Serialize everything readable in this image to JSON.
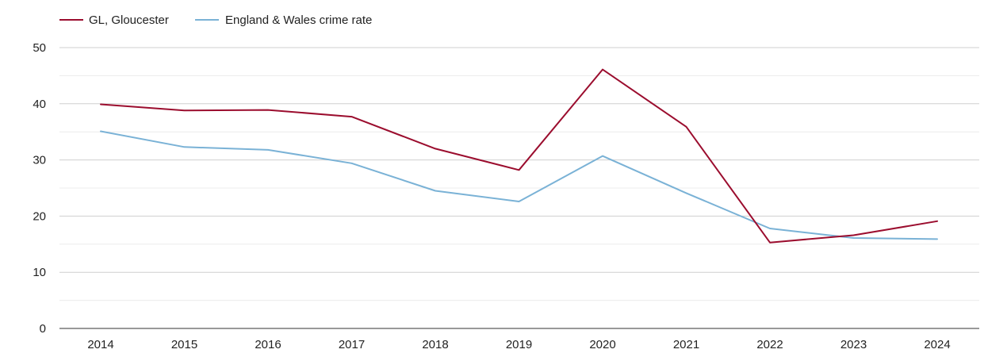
{
  "chart_data": {
    "type": "line",
    "title": "",
    "xlabel": "",
    "ylabel": "",
    "x": [
      "2014",
      "2015",
      "2016",
      "2017",
      "2018",
      "2019",
      "2020",
      "2021",
      "2022",
      "2023",
      "2024"
    ],
    "yticks": [
      "0",
      "10",
      "20",
      "30",
      "40",
      "50"
    ],
    "ylim": [
      0,
      50
    ],
    "grid": true,
    "legend_position": "top-left",
    "series": [
      {
        "name": "GL, Gloucester",
        "color": "#9b0d2e",
        "values": [
          39.9,
          38.8,
          38.9,
          37.7,
          32.0,
          28.2,
          46.1,
          35.9,
          15.3,
          16.6,
          19.1
        ]
      },
      {
        "name": "England & Wales crime rate",
        "color": "#7ab2d6",
        "values": [
          35.1,
          32.3,
          31.8,
          29.4,
          24.5,
          22.6,
          30.7,
          24.1,
          17.8,
          16.1,
          15.9
        ]
      }
    ]
  }
}
